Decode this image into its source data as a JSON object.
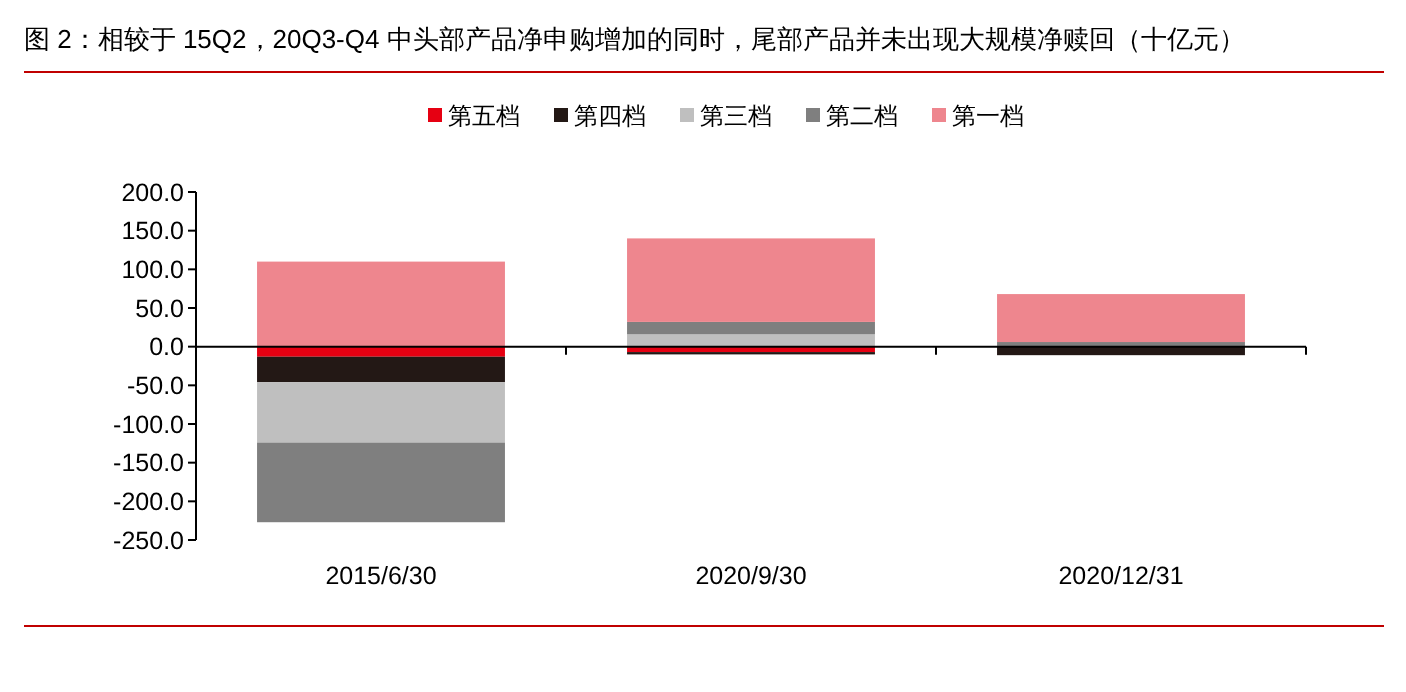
{
  "chart_data": {
    "type": "bar",
    "title": "图 2：相较于 15Q2，20Q3-Q4 中头部产品净申购增加的同时，尾部产品并未出现大规模净赎回（十亿元）",
    "categories": [
      "2015/6/30",
      "2020/9/30",
      "2020/12/31"
    ],
    "stacked": true,
    "legend": "top",
    "series": [
      {
        "name": "第五档",
        "color": "#e60012",
        "values": [
          -13,
          -7,
          0
        ]
      },
      {
        "name": "第四档",
        "color": "#231815",
        "values": [
          -33,
          -3,
          -11
        ]
      },
      {
        "name": "第三档",
        "color": "#bfbfbf",
        "values": [
          -78,
          16,
          0
        ]
      },
      {
        "name": "第二档",
        "color": "#7f7f7f",
        "values": [
          -103,
          16,
          6
        ]
      },
      {
        "name": "第一档",
        "color": "#ee868e",
        "values": [
          110,
          108,
          62
        ]
      }
    ],
    "ylim": [
      -250,
      200
    ],
    "yticks": [
      {
        "value": -250,
        "label": "-250.0"
      },
      {
        "value": -200,
        "label": "-200.0"
      },
      {
        "value": -150,
        "label": "-150.0"
      },
      {
        "value": -100,
        "label": "-100.0"
      },
      {
        "value": -50,
        "label": "-50.0"
      },
      {
        "value": 0,
        "label": "0.0"
      },
      {
        "value": 50,
        "label": "50.0"
      },
      {
        "value": 100,
        "label": "100.0"
      },
      {
        "value": 150,
        "label": "150.0"
      },
      {
        "value": 200,
        "label": "200.0"
      }
    ]
  }
}
